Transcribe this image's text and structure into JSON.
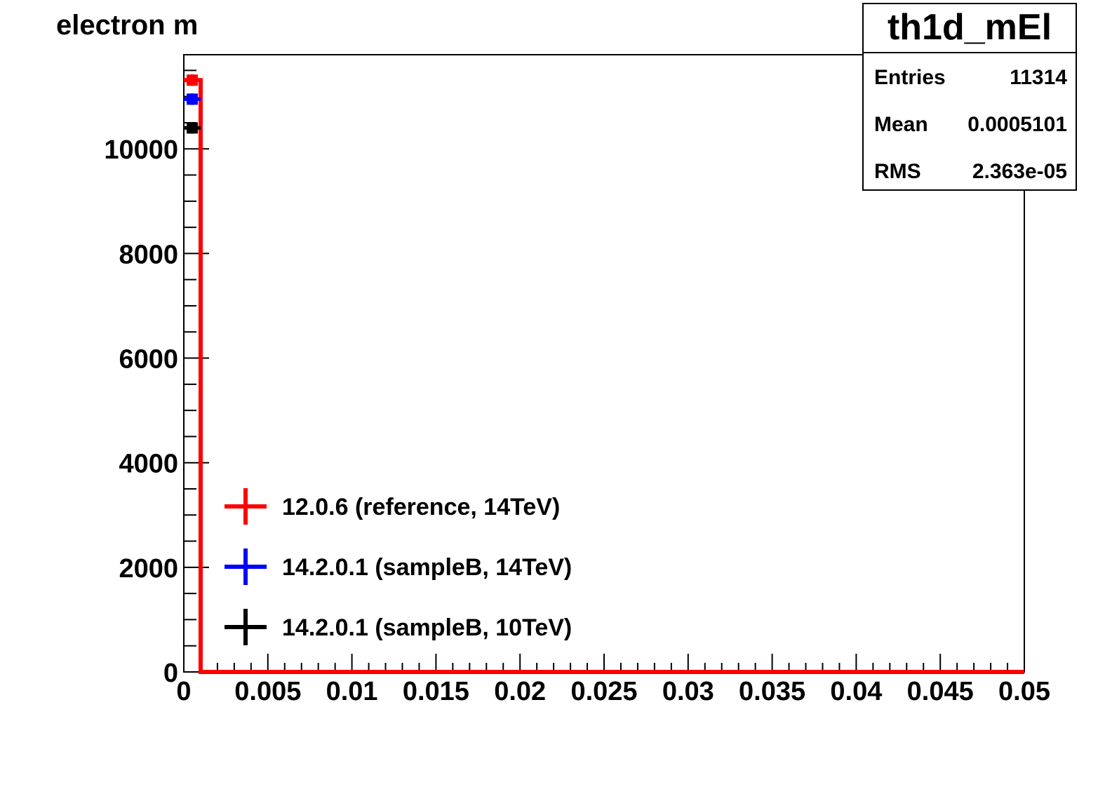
{
  "chart_data": {
    "type": "bar",
    "title": "electron m",
    "xlabel": "",
    "ylabel": "",
    "xlim": [
      0,
      0.05
    ],
    "ylim": [
      0,
      11800
    ],
    "x_ticks": [
      "0",
      "0.005",
      "0.01",
      "0.015",
      "0.02",
      "0.025",
      "0.03",
      "0.035",
      "0.04",
      "0.045",
      "0.05"
    ],
    "y_ticks": [
      "0",
      "2000",
      "4000",
      "6000",
      "8000",
      "10000"
    ],
    "bin_width": 0.001,
    "series": [
      {
        "name": "12.0.6 (reference, 14TeV)",
        "color": "#ff0000",
        "style": "histogram+markers",
        "x": [
          0.0005
        ],
        "y": [
          11314
        ],
        "err": [
          110
        ]
      },
      {
        "name": "14.2.0.1 (sampleB, 14TeV)",
        "color": "#0000ff",
        "style": "markers",
        "x": [
          0.0005
        ],
        "y": [
          10950
        ],
        "err": [
          110
        ]
      },
      {
        "name": "14.2.0.1 (sampleB, 10TeV)",
        "color": "#000000",
        "style": "markers",
        "x": [
          0.0005
        ],
        "y": [
          10400
        ],
        "err": [
          110
        ]
      }
    ],
    "legend_position": "bottom-left",
    "stats": {
      "name": "th1d_mEl",
      "rows": [
        {
          "label": "Entries",
          "value": "11314"
        },
        {
          "label": "Mean",
          "value": "0.0005101"
        },
        {
          "label": "RMS",
          "value": "2.363e-05"
        }
      ]
    }
  }
}
